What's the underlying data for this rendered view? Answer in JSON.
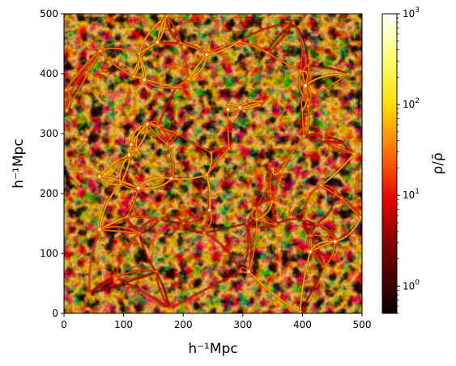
{
  "chart_data": {
    "type": "heatmap",
    "title": "",
    "xlabel": "h⁻¹Mpc",
    "ylabel": "h⁻¹Mpc",
    "xlim": [
      0,
      500
    ],
    "ylim": [
      0,
      500
    ],
    "x_ticks": [
      "0",
      "100",
      "200",
      "300",
      "400",
      "500"
    ],
    "y_ticks": [
      "0",
      "100",
      "200",
      "300",
      "400",
      "500"
    ],
    "colorbar": {
      "label": "ρ/ρ̄",
      "scale": "log",
      "range": [
        0.5,
        1000
      ],
      "ticks": [
        {
          "base": "10",
          "exp": "0",
          "value": 1
        },
        {
          "base": "10",
          "exp": "1",
          "value": 10
        },
        {
          "base": "10",
          "exp": "2",
          "value": 100
        },
        {
          "base": "10",
          "exp": "3",
          "value": 1000
        }
      ],
      "colormap": "hot"
    },
    "grid": false
  }
}
